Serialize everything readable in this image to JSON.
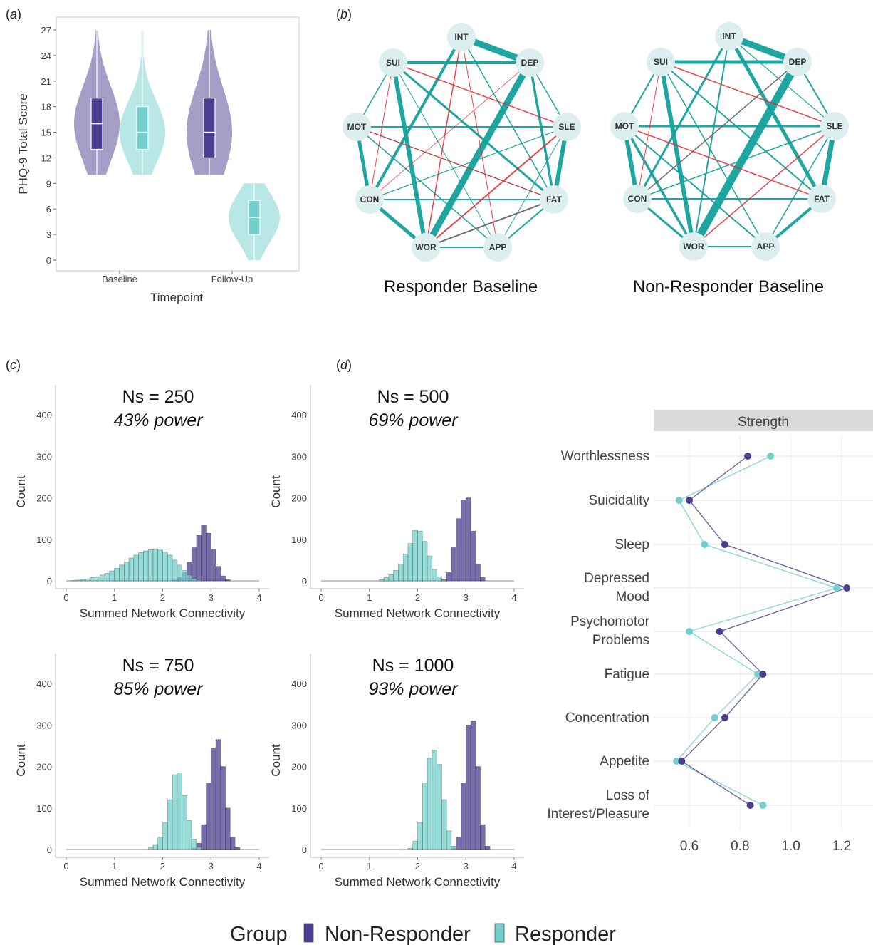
{
  "colors": {
    "non_responder": "#4B3D8F",
    "responder": "#72CFCB",
    "positive_edge": "#13A19C",
    "negative_edge": "#E0262E",
    "node_fill": "#DDEEEE",
    "strip": "#D9D9D9"
  },
  "legend": {
    "title": "Group",
    "items": [
      "Non-Responder",
      "Responder"
    ]
  },
  "chart_data": [
    {
      "panel": "(a)",
      "type": "violin",
      "ylabel": "PHQ-9 Total Score",
      "xlabel": "Timepoint",
      "categories": [
        "Baseline",
        "Follow-Up"
      ],
      "ylim": [
        0,
        27
      ],
      "yticks": [
        0,
        3,
        6,
        9,
        12,
        15,
        18,
        21,
        24,
        27
      ],
      "series": [
        {
          "name": "Non-Responder",
          "boxes": [
            {
              "category": "Baseline",
              "min": 10,
              "q1": 13,
              "median": 16,
              "q3": 19,
              "max": 27
            },
            {
              "category": "Follow-Up",
              "min": 10,
              "q1": 12,
              "median": 15,
              "q3": 19,
              "max": 27
            }
          ]
        },
        {
          "name": "Responder",
          "boxes": [
            {
              "category": "Baseline",
              "min": 10,
              "q1": 13,
              "median": 15,
              "q3": 18,
              "max": 27
            },
            {
              "category": "Follow-Up",
              "min": 0,
              "q1": 3,
              "median": 5,
              "q3": 7,
              "max": 9
            }
          ]
        }
      ]
    },
    {
      "panel": "(b)",
      "type": "network",
      "node_labels": [
        "INT",
        "DEP",
        "SLE",
        "FAT",
        "APP",
        "WOR",
        "CON",
        "MOT",
        "SUI"
      ],
      "networks": [
        {
          "title": "Responder Baseline",
          "edges": [
            [
              "INT",
              "DEP",
              9,
              "pos"
            ],
            [
              "SUI",
              "DEP",
              4,
              "pos"
            ],
            [
              "SUI",
              "WOR",
              6,
              "pos"
            ],
            [
              "DEP",
              "WOR",
              9,
              "pos"
            ],
            [
              "SLE",
              "FAT",
              6,
              "pos"
            ],
            [
              "CON",
              "WOR",
              5,
              "pos"
            ],
            [
              "MOT",
              "CON",
              5,
              "pos"
            ],
            [
              "INT",
              "CON",
              4,
              "pos"
            ],
            [
              "DEP",
              "FAT",
              3.5,
              "pos"
            ],
            [
              "SUI",
              "FAT",
              3,
              "pos"
            ],
            [
              "MOT",
              "SLE",
              2,
              "pos"
            ],
            [
              "CON",
              "FAT",
              2,
              "pos"
            ],
            [
              "FAT",
              "APP",
              2,
              "pos"
            ],
            [
              "WOR",
              "APP",
              2,
              "pos"
            ],
            [
              "DEP",
              "SLE",
              1.5,
              "pos"
            ],
            [
              "SUI",
              "MOT",
              1.5,
              "pos"
            ],
            [
              "MOT",
              "APP",
              1.5,
              "pos"
            ],
            [
              "INT",
              "FAT",
              1.5,
              "pos"
            ],
            [
              "MOT",
              "FAT",
              1.2,
              "pos"
            ],
            [
              "CON",
              "SLE",
              1.2,
              "pos"
            ],
            [
              "SUI",
              "APP",
              1,
              "pos"
            ],
            [
              "SLE",
              "APP",
              1,
              "pos"
            ],
            [
              "WOR",
              "FAT",
              2,
              "pos"
            ],
            [
              "SUI",
              "SLE",
              1.5,
              "neg"
            ],
            [
              "INT",
              "WOR",
              1.5,
              "neg"
            ],
            [
              "SLE",
              "WOR",
              2,
              "neg"
            ],
            [
              "SUI",
              "CON",
              1,
              "neg"
            ],
            [
              "MOT",
              "FAT",
              1.2,
              "neg"
            ],
            [
              "DEP",
              "CON",
              0.8,
              "neg"
            ],
            [
              "INT",
              "APP",
              1,
              "neg"
            ],
            [
              "FAT",
              "WOR",
              1,
              "neg"
            ]
          ]
        },
        {
          "title": "Non-Responder Baseline",
          "edges": [
            [
              "INT",
              "DEP",
              9,
              "pos"
            ],
            [
              "DEP",
              "WOR",
              11,
              "pos"
            ],
            [
              "SUI",
              "DEP",
              5,
              "pos"
            ],
            [
              "SUI",
              "WOR",
              6,
              "pos"
            ],
            [
              "SLE",
              "FAT",
              7,
              "pos"
            ],
            [
              "INT",
              "FAT",
              5,
              "pos"
            ],
            [
              "MOT",
              "CON",
              6,
              "pos"
            ],
            [
              "FAT",
              "APP",
              4,
              "pos"
            ],
            [
              "MOT",
              "SLE",
              3,
              "pos"
            ],
            [
              "CON",
              "WOR",
              3,
              "pos"
            ],
            [
              "INT",
              "CON",
              3,
              "pos"
            ],
            [
              "MOT",
              "WOR",
              3.5,
              "pos"
            ],
            [
              "DEP",
              "SLE",
              2,
              "pos"
            ],
            [
              "SUI",
              "MOT",
              2,
              "pos"
            ],
            [
              "INT",
              "WOR",
              2,
              "pos"
            ],
            [
              "WOR",
              "APP",
              2,
              "pos"
            ],
            [
              "CON",
              "FAT",
              2,
              "pos"
            ],
            [
              "MOT",
              "APP",
              2,
              "pos"
            ],
            [
              "SUI",
              "APP",
              1.5,
              "pos"
            ],
            [
              "SLE",
              "APP",
              1.5,
              "pos"
            ],
            [
              "DEP",
              "CON",
              1.5,
              "pos"
            ],
            [
              "CON",
              "SLE",
              1.5,
              "pos"
            ],
            [
              "INT",
              "SLE",
              1.2,
              "pos"
            ],
            [
              "SUI",
              "FAT",
              2,
              "pos"
            ],
            [
              "SUI",
              "SLE",
              1.5,
              "neg"
            ],
            [
              "MOT",
              "FAT",
              1.5,
              "neg"
            ],
            [
              "WOR",
              "SLE",
              1.5,
              "neg"
            ],
            [
              "CON",
              "DEP",
              0.8,
              "neg"
            ],
            [
              "SUI",
              "CON",
              1,
              "neg"
            ]
          ]
        }
      ]
    },
    {
      "panel": "(c)",
      "type": "histogram",
      "xlabel": "Summed Network Connectivity",
      "ylabel": "Count",
      "xlim": [
        0,
        4
      ],
      "ylim": [
        0,
        400
      ],
      "xticks": [
        0,
        1,
        2,
        3,
        4
      ],
      "yticks": [
        0,
        100,
        200,
        300,
        400
      ],
      "subplots": [
        {
          "title": "Ns = 250",
          "subtitle": "43% power",
          "responder": {
            "x_start": 0.1,
            "bin": 0.1,
            "counts": [
              1,
              2,
              3,
              5,
              8,
              10,
              14,
              18,
              24,
              30,
              38,
              45,
              55,
              62,
              68,
              72,
              75,
              76,
              74,
              70,
              62,
              50,
              38,
              25,
              14,
              6,
              2
            ]
          },
          "non_responder": {
            "x_start": 2.2,
            "bin": 0.1,
            "counts": [
              2,
              8,
              20,
              45,
              80,
              110,
              135,
              115,
              75,
              35,
              12,
              3
            ]
          }
        },
        {
          "title": "Ns = 500",
          "subtitle": "69% power",
          "responder": {
            "x_start": 1.2,
            "bin": 0.1,
            "counts": [
              3,
              8,
              15,
              25,
              40,
              65,
              90,
              122,
              120,
              95,
              60,
              28,
              10,
              3
            ]
          },
          "non_responder": {
            "x_start": 2.5,
            "bin": 0.1,
            "counts": [
              3,
              20,
              80,
              150,
              195,
              200,
              120,
              40,
              8
            ]
          }
        },
        {
          "title": "Ns = 750",
          "subtitle": "85% power",
          "responder": {
            "x_start": 1.7,
            "bin": 0.1,
            "counts": [
              4,
              12,
              30,
              65,
              120,
              180,
              185,
              130,
              70,
              25,
              6
            ]
          },
          "non_responder": {
            "x_start": 2.6,
            "bin": 0.1,
            "counts": [
              3,
              15,
              60,
              160,
              245,
              265,
              200,
              100,
              30,
              5
            ]
          }
        },
        {
          "title": "Ns = 1000",
          "subtitle": "93% power",
          "responder": {
            "x_start": 1.8,
            "bin": 0.1,
            "counts": [
              3,
              20,
              65,
              160,
              220,
              240,
              205,
              120,
              45,
              8
            ]
          },
          "non_responder": {
            "x_start": 2.7,
            "bin": 0.1,
            "counts": [
              3,
              30,
              160,
              300,
              310,
              200,
              60,
              8
            ]
          }
        }
      ]
    },
    {
      "panel": "(d)",
      "type": "dot-line",
      "strip_label": "Strength",
      "xlim": [
        0.5,
        1.25
      ],
      "xticks": [
        0.6,
        0.8,
        1.0,
        1.2
      ],
      "xtick_labels": [
        "0.6",
        "0.8",
        "1.0",
        "1.2"
      ],
      "categories": [
        [
          "Worthlessness"
        ],
        [
          "Suicidality"
        ],
        [
          "Sleep"
        ],
        [
          "Depressed",
          "Mood"
        ],
        [
          "Psychomotor",
          "Problems"
        ],
        [
          "Fatigue"
        ],
        [
          "Concentration"
        ],
        [
          "Appetite"
        ],
        [
          "Loss of",
          "Interest/Pleasure"
        ]
      ],
      "series": [
        {
          "name": "Non-Responder",
          "values": [
            0.83,
            0.6,
            0.74,
            1.22,
            0.72,
            0.89,
            0.74,
            0.57,
            0.84
          ]
        },
        {
          "name": "Responder",
          "values": [
            0.92,
            0.56,
            0.66,
            1.18,
            0.6,
            0.87,
            0.7,
            0.55,
            0.89
          ]
        }
      ]
    }
  ],
  "labels": {
    "panel_a": "(a)",
    "panel_b": "(b)",
    "panel_c": "(c)",
    "panel_d": "(d)"
  }
}
